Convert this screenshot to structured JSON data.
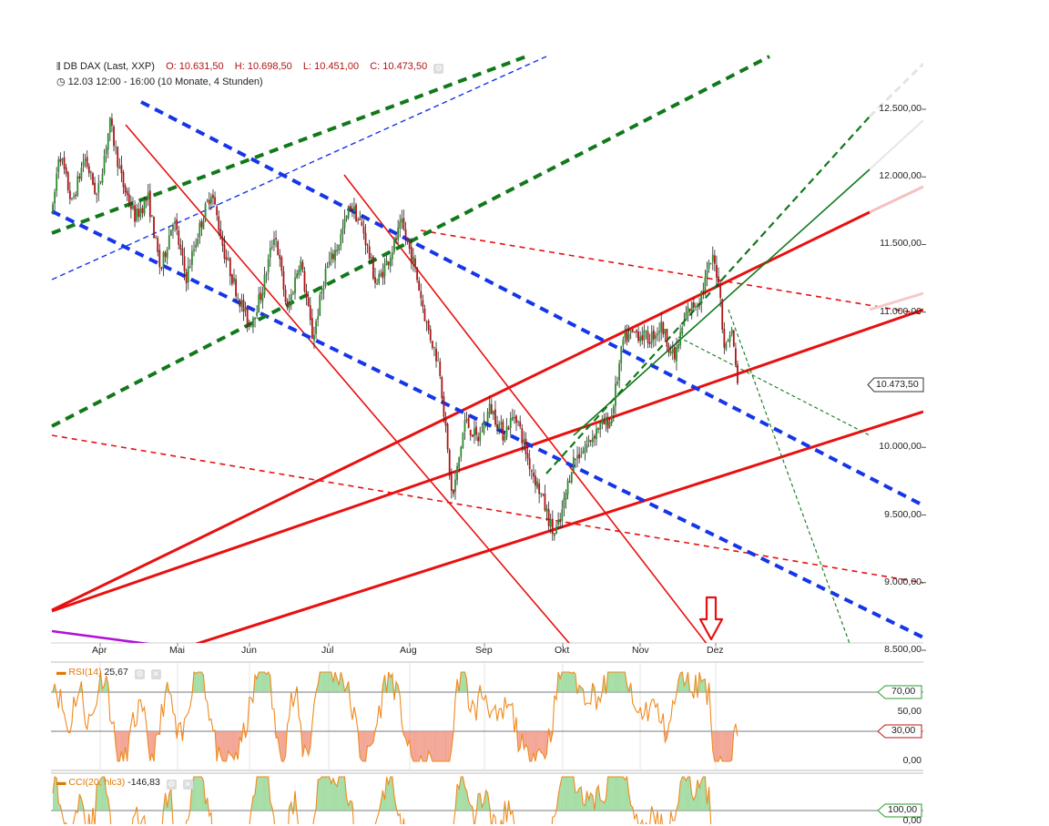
{
  "header": {
    "instrument": "DB DAX (Last, XXP)",
    "open": "O: 10.631,50",
    "high": "H: 10.698,50",
    "low": "L: 10.451,00",
    "close": "C: 10.473,50",
    "period": "12.03 12:00 - 16:00 (10 Monate, 4 Stunden)"
  },
  "colors": {
    "up_candle": "#2e8b2e",
    "down_candle": "#b01515",
    "red_trend": "#e81010",
    "blue_trend": "#1535e8",
    "green_trend": "#11791a",
    "rsi_line": "#f08a20",
    "cci_line": "#f08a20",
    "arrow": "#e81010"
  },
  "chart_data": [
    {
      "type": "candlestick",
      "ylim": [
        8500,
        12600
      ],
      "yticks": [
        "12.500,00",
        "12.000,00",
        "11.500,00",
        "11.000,00",
        "10.000,00",
        "9.500,00",
        "9.000,00",
        "8.500,00"
      ],
      "xticks": [
        "Apr",
        "Mai",
        "Jun",
        "Jul",
        "Aug",
        "Sep",
        "Okt",
        "Nov",
        "Dez"
      ],
      "last_price_label": "10.473,50",
      "last_price": 10473.5,
      "anchors": [
        {
          "x": 0,
          "y": 11750
        },
        {
          "x": 1,
          "y": 12200
        },
        {
          "x": 3,
          "y": 11800
        },
        {
          "x": 5,
          "y": 12150
        },
        {
          "x": 7,
          "y": 11850
        },
        {
          "x": 9,
          "y": 12400
        },
        {
          "x": 11,
          "y": 11950
        },
        {
          "x": 13,
          "y": 11700
        },
        {
          "x": 15,
          "y": 11850
        },
        {
          "x": 17,
          "y": 11300
        },
        {
          "x": 19,
          "y": 11700
        },
        {
          "x": 21,
          "y": 11250
        },
        {
          "x": 23,
          "y": 11600
        },
        {
          "x": 25,
          "y": 11900
        },
        {
          "x": 27,
          "y": 11450
        },
        {
          "x": 29,
          "y": 11150
        },
        {
          "x": 31,
          "y": 10900
        },
        {
          "x": 33,
          "y": 11150
        },
        {
          "x": 35,
          "y": 11600
        },
        {
          "x": 37,
          "y": 11000
        },
        {
          "x": 39,
          "y": 11400
        },
        {
          "x": 41,
          "y": 10800
        },
        {
          "x": 43,
          "y": 11300
        },
        {
          "x": 45,
          "y": 11500
        },
        {
          "x": 47,
          "y": 11800
        },
        {
          "x": 49,
          "y": 11600
        },
        {
          "x": 51,
          "y": 11200
        },
        {
          "x": 53,
          "y": 11400
        },
        {
          "x": 55,
          "y": 11650
        },
        {
          "x": 57,
          "y": 11350
        },
        {
          "x": 59,
          "y": 10900
        },
        {
          "x": 61,
          "y": 10600
        },
        {
          "x": 63,
          "y": 9600
        },
        {
          "x": 65,
          "y": 10200
        },
        {
          "x": 67,
          "y": 10050
        },
        {
          "x": 69,
          "y": 10300
        },
        {
          "x": 71,
          "y": 10100
        },
        {
          "x": 73,
          "y": 10250
        },
        {
          "x": 75,
          "y": 9900
        },
        {
          "x": 77,
          "y": 9650
        },
        {
          "x": 79,
          "y": 9350
        },
        {
          "x": 80,
          "y": 9450
        },
        {
          "x": 82,
          "y": 9900
        },
        {
          "x": 84,
          "y": 10000
        },
        {
          "x": 86,
          "y": 10150
        },
        {
          "x": 88,
          "y": 10200
        },
        {
          "x": 90,
          "y": 10800
        },
        {
          "x": 92,
          "y": 10850
        },
        {
          "x": 94,
          "y": 10800
        },
        {
          "x": 96,
          "y": 10900
        },
        {
          "x": 98,
          "y": 10650
        },
        {
          "x": 100,
          "y": 11000
        },
        {
          "x": 102,
          "y": 11100
        },
        {
          "x": 104,
          "y": 11400
        },
        {
          "x": 105,
          "y": 11250
        },
        {
          "x": 106,
          "y": 10700
        },
        {
          "x": 107,
          "y": 10900
        },
        {
          "x": 108,
          "y": 10473
        }
      ],
      "x_range": [
        0,
        108
      ]
    },
    {
      "type": "line",
      "name": "RSI(14)",
      "value_label": "25,67",
      "ylim": [
        0,
        100
      ],
      "yticks": [
        "70,00",
        "50,00",
        "30,00",
        "0,00"
      ],
      "levels": [
        70,
        30
      ]
    },
    {
      "type": "line",
      "name": "CCI(20, hlc3)",
      "value_label": "-146,83",
      "yticks": [
        "100,00",
        "0,00"
      ],
      "levels": [
        100
      ]
    }
  ]
}
